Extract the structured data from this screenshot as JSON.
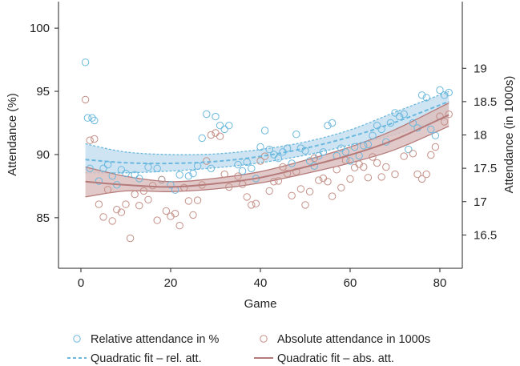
{
  "chart_data": {
    "type": "scatter",
    "xlabel": "Game",
    "ylabel_left": "Attendance (%)",
    "ylabel_right": "Attendance (in 1000s)",
    "xlim": [
      -5,
      85
    ],
    "ylim_left": [
      81,
      102.1
    ],
    "ylim_right": [
      16.0,
      20.0
    ],
    "xticks": [
      0,
      20,
      40,
      60,
      80
    ],
    "yticks_left": [
      85,
      90,
      95,
      100
    ],
    "yticks_right": [
      16.5,
      17,
      17.5,
      18,
      18.5,
      19
    ],
    "grid": false,
    "legend_position": "bottom",
    "series": [
      {
        "name": "Relative attendance in %",
        "kind": "points",
        "axis": "left",
        "color": "#6ab8de",
        "points": [
          [
            1,
            97.3
          ],
          [
            1.5,
            92.9
          ],
          [
            2,
            88.9
          ],
          [
            2.5,
            92.9
          ],
          [
            3,
            92.7
          ],
          [
            4,
            87.9
          ],
          [
            5,
            88.9
          ],
          [
            6,
            89.2
          ],
          [
            7,
            88.3
          ],
          [
            8,
            87.6
          ],
          [
            9,
            88.8
          ],
          [
            10,
            88.5
          ],
          [
            12,
            88.4
          ],
          [
            13,
            88.1
          ],
          [
            15,
            89.0
          ],
          [
            17,
            88.9
          ],
          [
            18,
            88.0
          ],
          [
            20,
            87.6
          ],
          [
            21,
            87.2
          ],
          [
            22,
            88.4
          ],
          [
            24,
            88.3
          ],
          [
            25,
            88.5
          ],
          [
            26,
            89.1
          ],
          [
            27,
            91.3
          ],
          [
            28,
            93.2
          ],
          [
            29,
            88.9
          ],
          [
            30,
            93.0
          ],
          [
            31,
            92.3
          ],
          [
            32,
            92.0
          ],
          [
            33,
            92.3
          ],
          [
            35,
            89.2
          ],
          [
            36,
            88.7
          ],
          [
            37,
            89.4
          ],
          [
            38,
            88.9
          ],
          [
            39,
            88.1
          ],
          [
            40,
            90.6
          ],
          [
            41,
            91.9
          ],
          [
            42,
            90.4
          ],
          [
            43,
            90.0
          ],
          [
            44,
            89.7
          ],
          [
            45,
            90.2
          ],
          [
            46,
            90.5
          ],
          [
            47,
            89.3
          ],
          [
            48,
            91.6
          ],
          [
            49,
            90.5
          ],
          [
            50,
            90.3
          ],
          [
            51,
            89.5
          ],
          [
            52,
            89.1
          ],
          [
            53,
            89.9
          ],
          [
            54,
            90.2
          ],
          [
            55,
            92.3
          ],
          [
            56,
            92.5
          ],
          [
            57,
            89.9
          ],
          [
            58,
            90.5
          ],
          [
            59,
            90.2
          ],
          [
            60,
            89.5
          ],
          [
            61,
            90.6
          ],
          [
            62,
            89.9
          ],
          [
            63,
            90.7
          ],
          [
            64,
            90.8
          ],
          [
            65,
            91.5
          ],
          [
            66,
            92.3
          ],
          [
            67,
            92.0
          ],
          [
            68,
            91.0
          ],
          [
            69,
            92.5
          ],
          [
            70,
            93.3
          ],
          [
            71,
            93.0
          ],
          [
            72,
            93.2
          ],
          [
            73,
            90.4
          ],
          [
            74,
            92.5
          ],
          [
            75,
            92.1
          ],
          [
            76,
            94.7
          ],
          [
            77,
            94.5
          ],
          [
            78,
            92.0
          ],
          [
            79,
            91.5
          ],
          [
            80,
            95.1
          ],
          [
            81,
            94.7
          ],
          [
            82,
            94.9
          ]
        ]
      },
      {
        "name": "Absolute attendance in 1000s",
        "kind": "points",
        "axis": "right",
        "color": "#c48f86",
        "points": [
          [
            1,
            18.53
          ],
          [
            2,
            17.92
          ],
          [
            3,
            17.94
          ],
          [
            4,
            16.96
          ],
          [
            5,
            16.77
          ],
          [
            6,
            17.18
          ],
          [
            7,
            16.71
          ],
          [
            8,
            16.88
          ],
          [
            9,
            16.84
          ],
          [
            10,
            16.96
          ],
          [
            11,
            16.45
          ],
          [
            12,
            17.11
          ],
          [
            13,
            16.94
          ],
          [
            14,
            17.16
          ],
          [
            15,
            17.03
          ],
          [
            16,
            17.24
          ],
          [
            17,
            16.72
          ],
          [
            18,
            17.33
          ],
          [
            19,
            16.86
          ],
          [
            20,
            16.78
          ],
          [
            21,
            16.82
          ],
          [
            22,
            16.64
          ],
          [
            23,
            17.21
          ],
          [
            24,
            17.01
          ],
          [
            25,
            16.8
          ],
          [
            26,
            17.02
          ],
          [
            27,
            17.25
          ],
          [
            28,
            17.61
          ],
          [
            29,
            18.0
          ],
          [
            30,
            18.03
          ],
          [
            31,
            17.98
          ],
          [
            32,
            17.41
          ],
          [
            33,
            17.22
          ],
          [
            35,
            17.38
          ],
          [
            36,
            17.26
          ],
          [
            37,
            17.07
          ],
          [
            38,
            16.95
          ],
          [
            39,
            16.97
          ],
          [
            40,
            17.61
          ],
          [
            41,
            17.68
          ],
          [
            42,
            17.16
          ],
          [
            43,
            17.3
          ],
          [
            44,
            17.31
          ],
          [
            45,
            17.52
          ],
          [
            46,
            17.42
          ],
          [
            47,
            17.09
          ],
          [
            48,
            17.45
          ],
          [
            49,
            17.19
          ],
          [
            50,
            16.95
          ],
          [
            51,
            17.15
          ],
          [
            52,
            17.65
          ],
          [
            53,
            17.32
          ],
          [
            54,
            17.35
          ],
          [
            55,
            17.3
          ],
          [
            56,
            17.08
          ],
          [
            57,
            17.48
          ],
          [
            58,
            17.21
          ],
          [
            59,
            17.62
          ],
          [
            60,
            17.34
          ],
          [
            61,
            17.51
          ],
          [
            62,
            17.56
          ],
          [
            63,
            17.52
          ],
          [
            64,
            17.36
          ],
          [
            65,
            17.67
          ],
          [
            66,
            17.58
          ],
          [
            67,
            17.37
          ],
          [
            68,
            17.52
          ],
          [
            70,
            17.41
          ],
          [
            72,
            17.68
          ],
          [
            74,
            17.72
          ],
          [
            75,
            17.41
          ],
          [
            76,
            17.34
          ],
          [
            77,
            17.41
          ],
          [
            78,
            17.7
          ],
          [
            79,
            17.82
          ],
          [
            80,
            18.28
          ],
          [
            81,
            18.2
          ],
          [
            82,
            18.31
          ]
        ]
      },
      {
        "name": "Quadratic fit – rel. att.",
        "kind": "fit",
        "axis": "left",
        "color": "#6ab8de",
        "band_fill": "#c6dff0",
        "x": [
          1,
          10,
          20,
          30,
          40,
          50,
          60,
          70,
          82
        ],
        "fit": [
          89.6,
          89.35,
          89.3,
          89.45,
          89.85,
          90.5,
          91.4,
          92.55,
          94.2
        ],
        "lower": [
          88.55,
          88.55,
          88.7,
          88.95,
          89.35,
          89.95,
          90.75,
          91.6,
          92.95
        ],
        "upper": [
          90.85,
          90.2,
          90.0,
          90.05,
          90.4,
          91.0,
          91.95,
          93.35,
          95.0
        ]
      },
      {
        "name": "Quadratic fit – abs. att.",
        "kind": "fit",
        "axis": "right",
        "color": "#b57a7a",
        "band_fill": "#dcc0bf",
        "x": [
          1,
          10,
          20,
          30,
          40,
          50,
          60,
          70,
          82
        ],
        "fit": [
          17.3,
          17.25,
          17.22,
          17.27,
          17.36,
          17.52,
          17.7,
          17.93,
          18.3
        ],
        "lower": [
          17.07,
          17.16,
          17.15,
          17.19,
          17.28,
          17.42,
          17.58,
          17.78,
          18.13
        ],
        "upper": [
          17.52,
          17.38,
          17.3,
          17.35,
          17.45,
          17.62,
          17.82,
          18.08,
          18.48
        ]
      }
    ],
    "legend": [
      {
        "label": "Relative attendance in %",
        "marker": "circle",
        "color": "#6ab8de"
      },
      {
        "label": "Absolute attendance in 1000s",
        "marker": "circle",
        "color": "#c48f86"
      },
      {
        "label": "Quadratic fit – rel. att.",
        "marker": "dashed-line",
        "color": "#6ab8de"
      },
      {
        "label": "Quadratic fit – abs. att.",
        "marker": "solid-line",
        "color": "#b57a7a"
      }
    ]
  }
}
